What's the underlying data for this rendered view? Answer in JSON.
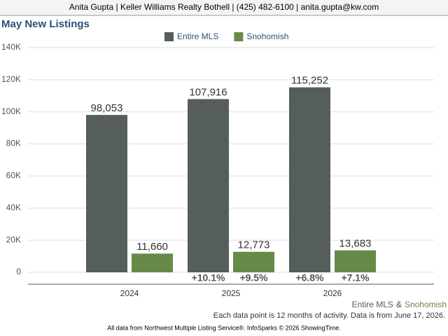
{
  "header": "Anita Gupta | Keller Williams Realty Bothell | (425) 482-6100 | anita.gupta@kw.com",
  "chart_data": {
    "type": "bar",
    "title": "May New Listings",
    "categories": [
      "2024",
      "2025",
      "2026"
    ],
    "series": [
      {
        "name": "Entire MLS",
        "color": "#555e5a",
        "values": [
          98053,
          107916,
          115252
        ],
        "value_labels": [
          "98,053",
          "107,916",
          "115,252"
        ],
        "change_labels": [
          null,
          "+10.1%",
          "+6.8%"
        ]
      },
      {
        "name": "Snohomish",
        "color": "#678a48",
        "values": [
          11660,
          12773,
          13683
        ],
        "value_labels": [
          "11,660",
          "12,773",
          "13,683"
        ],
        "change_labels": [
          null,
          "+9.5%",
          "+7.1%"
        ]
      }
    ],
    "ylim": [
      0,
      140000
    ],
    "yticks": [
      0,
      {
        "value": 20000,
        "label": "20K"
      },
      {
        "value": 40000,
        "label": "40K"
      },
      {
        "value": 60000,
        "label": "60K"
      },
      {
        "value": 80000,
        "label": "80K"
      },
      {
        "value": 100000,
        "label": "100K"
      },
      {
        "value": 120000,
        "label": "120K"
      },
      {
        "value": 140000,
        "label": "140K"
      }
    ],
    "grid": true,
    "footer_joiner": "&",
    "note": "Each data point is 12 months of activity. Data is from June 17, 2026.",
    "source": "All data from Northwest Multiple Listing Service®. InfoSparks © 2026 ShowingTime."
  }
}
